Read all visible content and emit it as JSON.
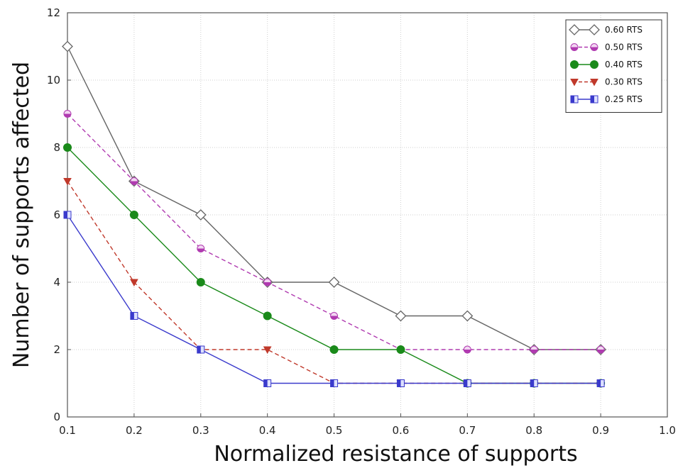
{
  "chart_data": {
    "type": "line",
    "xlabel": "Normalized resistance of supports",
    "ylabel": "Number of supports affected",
    "xlim": [
      0.1,
      1.0
    ],
    "ylim": [
      0,
      12
    ],
    "x_ticks": [
      "0.1",
      "0.2",
      "0.3",
      "0.4",
      "0.5",
      "0.6",
      "0.7",
      "0.8",
      "0.9",
      "1.0"
    ],
    "y_ticks": [
      "0",
      "2",
      "4",
      "6",
      "8",
      "10",
      "12"
    ],
    "grid": true,
    "legend_position": "top-right",
    "series": [
      {
        "name": "0.60 RTS",
        "color": "#666666",
        "dash": "solid",
        "marker": "diamond-open",
        "x": [
          0.1,
          0.2,
          0.3,
          0.4,
          0.5,
          0.6,
          0.7,
          0.8,
          0.9
        ],
        "y": [
          11,
          7,
          6,
          4,
          4,
          3,
          3,
          2,
          2
        ]
      },
      {
        "name": "0.50 RTS",
        "color": "#b03ab0",
        "dash": "dashed",
        "marker": "circle-half",
        "x": [
          0.1,
          0.2,
          0.3,
          0.4,
          0.5,
          0.6,
          0.7,
          0.8,
          0.9
        ],
        "y": [
          9,
          7,
          5,
          4,
          3,
          2,
          2,
          2,
          2
        ]
      },
      {
        "name": "0.40 RTS",
        "color": "#1a8a1a",
        "dash": "solid",
        "marker": "circle-filled",
        "x": [
          0.1,
          0.2,
          0.3,
          0.4,
          0.5,
          0.6,
          0.7,
          0.8,
          0.9
        ],
        "y": [
          8,
          6,
          4,
          3,
          2,
          2,
          1,
          1,
          1
        ]
      },
      {
        "name": "0.30 RTS",
        "color": "#c0392b",
        "dash": "dashed",
        "marker": "triangle-down",
        "x": [
          0.1,
          0.2,
          0.3,
          0.4,
          0.5,
          0.6,
          0.7,
          0.8,
          0.9
        ],
        "y": [
          7,
          4,
          2,
          2,
          1,
          1,
          1,
          1,
          1
        ]
      },
      {
        "name": "0.25 RTS",
        "color": "#3a3acc",
        "dash": "solid",
        "marker": "square-half",
        "x": [
          0.1,
          0.2,
          0.3,
          0.4,
          0.5,
          0.6,
          0.7,
          0.8,
          0.9
        ],
        "y": [
          6,
          3,
          2,
          1,
          1,
          1,
          1,
          1,
          1
        ]
      }
    ]
  }
}
